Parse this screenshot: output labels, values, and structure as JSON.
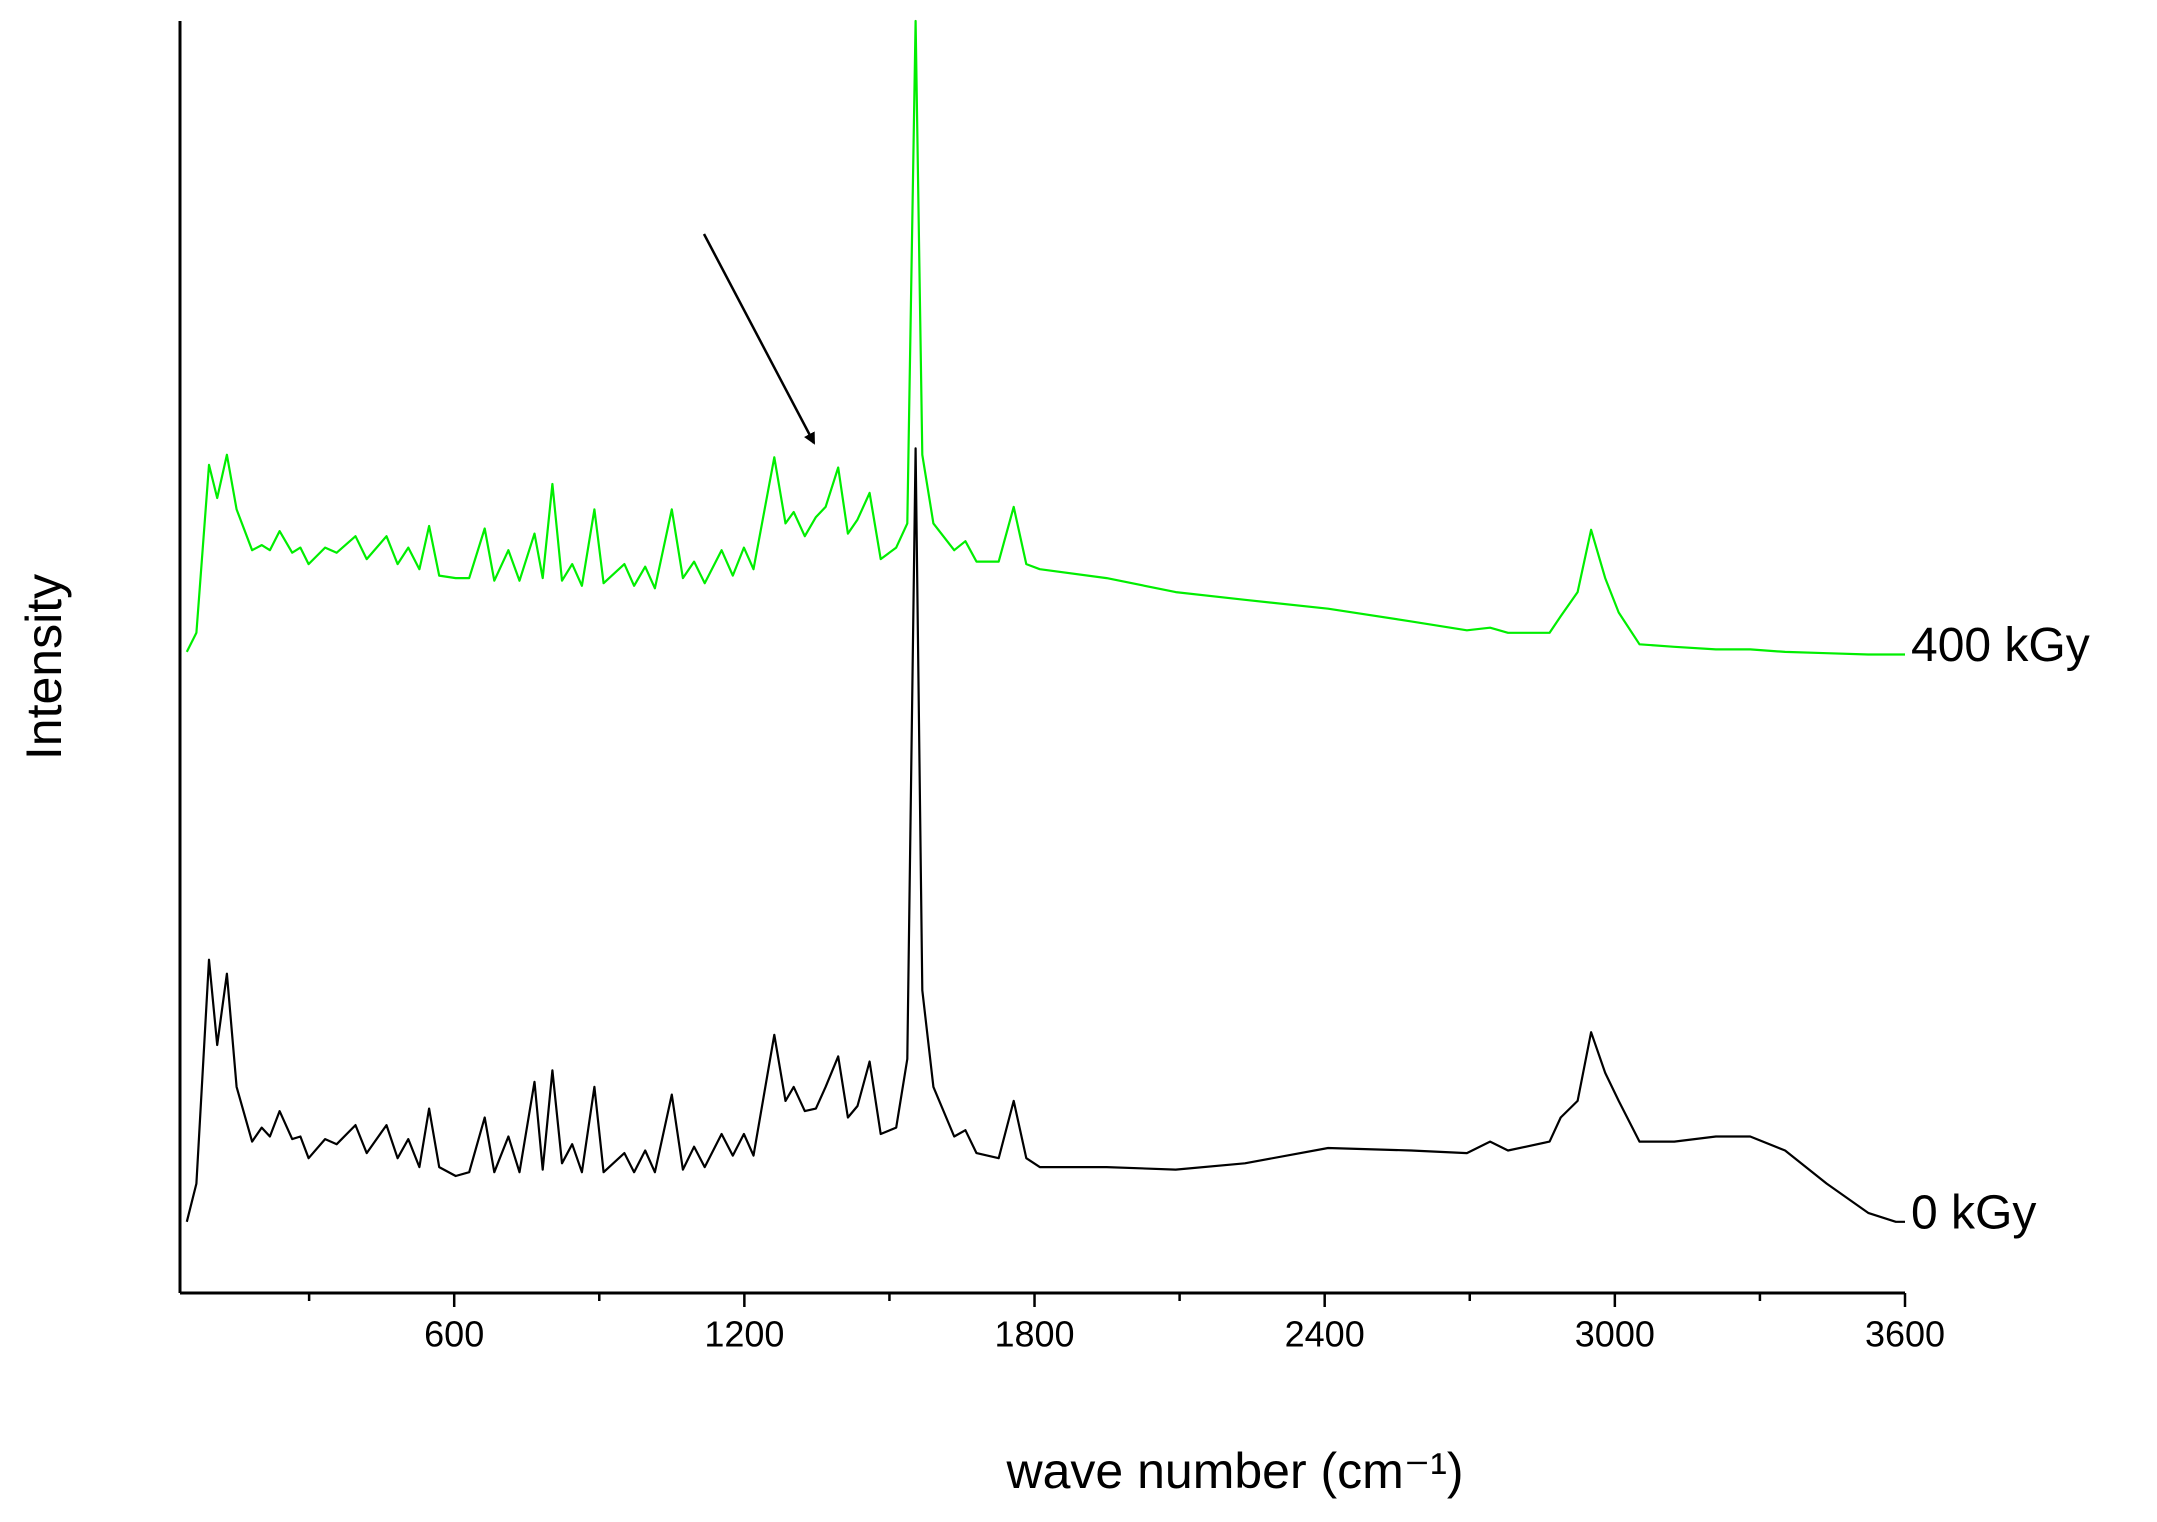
{
  "chart_data": {
    "type": "line",
    "xlabel": "wave number (cm⁻¹)",
    "ylabel": "Intensity",
    "xlim": [
      33,
      3600
    ],
    "ylim": [
      0,
      100
    ],
    "xticks": [
      600,
      1200,
      1800,
      2400,
      3000,
      3600
    ],
    "xminorticks": [
      300,
      900,
      1500,
      2100,
      2700,
      3300
    ],
    "x": [
      47,
      67,
      93,
      110,
      130,
      150,
      182,
      202,
      219,
      239,
      265,
      282,
      299,
      333,
      357,
      396,
      419,
      460,
      483,
      505,
      528,
      548,
      569,
      603,
      631,
      663,
      683,
      712,
      735,
      766,
      783,
      803,
      823,
      844,
      864,
      890,
      909,
      952,
      972,
      995,
      1015,
      1050,
      1073,
      1096,
      1118,
      1153,
      1176,
      1199,
      1219,
      1262,
      1285,
      1302,
      1325,
      1348,
      1368,
      1394,
      1414,
      1434,
      1459,
      1482,
      1514,
      1537,
      1554,
      1568,
      1591,
      1634,
      1657,
      1680,
      1726,
      1757,
      1783,
      1811,
      1949,
      2092,
      2235,
      2407,
      2579,
      2694,
      2742,
      2779,
      2865,
      2888,
      2923,
      2951,
      2980,
      3008,
      3051,
      3123,
      3209,
      3280,
      3352,
      3438,
      3524,
      3581,
      3600
    ],
    "series": [
      {
        "name": "400 kGy",
        "color": "#00ee00",
        "values": [
          50.4,
          51.9,
          65.1,
          62.5,
          65.9,
          61.6,
          58.4,
          58.8,
          58.4,
          59.9,
          58.2,
          58.6,
          57.3,
          58.6,
          58.2,
          59.5,
          57.7,
          59.5,
          57.3,
          58.6,
          56.9,
          60.3,
          56.4,
          56.2,
          56.2,
          60.1,
          56.0,
          58.4,
          56.0,
          59.7,
          56.2,
          63.6,
          56.0,
          57.3,
          55.6,
          61.6,
          55.8,
          57.3,
          55.6,
          57.1,
          55.4,
          61.6,
          56.2,
          57.5,
          55.8,
          58.4,
          56.4,
          58.6,
          56.9,
          65.7,
          60.5,
          61.4,
          59.5,
          61.0,
          61.8,
          64.9,
          59.7,
          60.8,
          62.9,
          57.7,
          58.6,
          60.5,
          100,
          65.9,
          60.5,
          58.4,
          59.1,
          57.5,
          57.5,
          61.8,
          57.3,
          56.9,
          56.2,
          55.1,
          54.5,
          53.8,
          52.8,
          52.1,
          52.3,
          51.9,
          51.9,
          53.2,
          55.1,
          60.0,
          56.2,
          53.5,
          51.0,
          50.8,
          50.6,
          50.6,
          50.4,
          50.3,
          50.2,
          50.2,
          50.2
        ]
      },
      {
        "name": "0 kGy",
        "color": "#000000",
        "values": [
          5.6,
          8.6,
          26.2,
          19.5,
          25.1,
          16.2,
          11.9,
          13.0,
          12.3,
          14.3,
          12.1,
          12.3,
          10.6,
          12.1,
          11.7,
          13.2,
          11.0,
          13.2,
          10.6,
          12.1,
          9.9,
          14.5,
          9.9,
          9.2,
          9.5,
          13.8,
          9.5,
          12.3,
          9.5,
          16.6,
          9.7,
          17.5,
          10.2,
          11.7,
          9.5,
          16.2,
          9.5,
          11.0,
          9.5,
          11.2,
          9.5,
          15.6,
          9.7,
          11.5,
          9.9,
          12.5,
          10.8,
          12.5,
          10.8,
          20.3,
          15.1,
          16.2,
          14.3,
          14.5,
          16.2,
          18.6,
          13.8,
          14.7,
          18.2,
          12.5,
          13.0,
          18.4,
          66.4,
          23.8,
          16.2,
          12.3,
          12.8,
          11.0,
          10.6,
          15.1,
          10.6,
          9.9,
          9.9,
          9.7,
          10.2,
          11.4,
          11.2,
          11.0,
          11.9,
          11.2,
          11.9,
          13.8,
          15.1,
          20.5,
          17.3,
          15.1,
          11.9,
          11.9,
          12.3,
          12.3,
          11.2,
          8.6,
          6.3,
          5.6,
          5.6
        ]
      }
    ]
  }
}
